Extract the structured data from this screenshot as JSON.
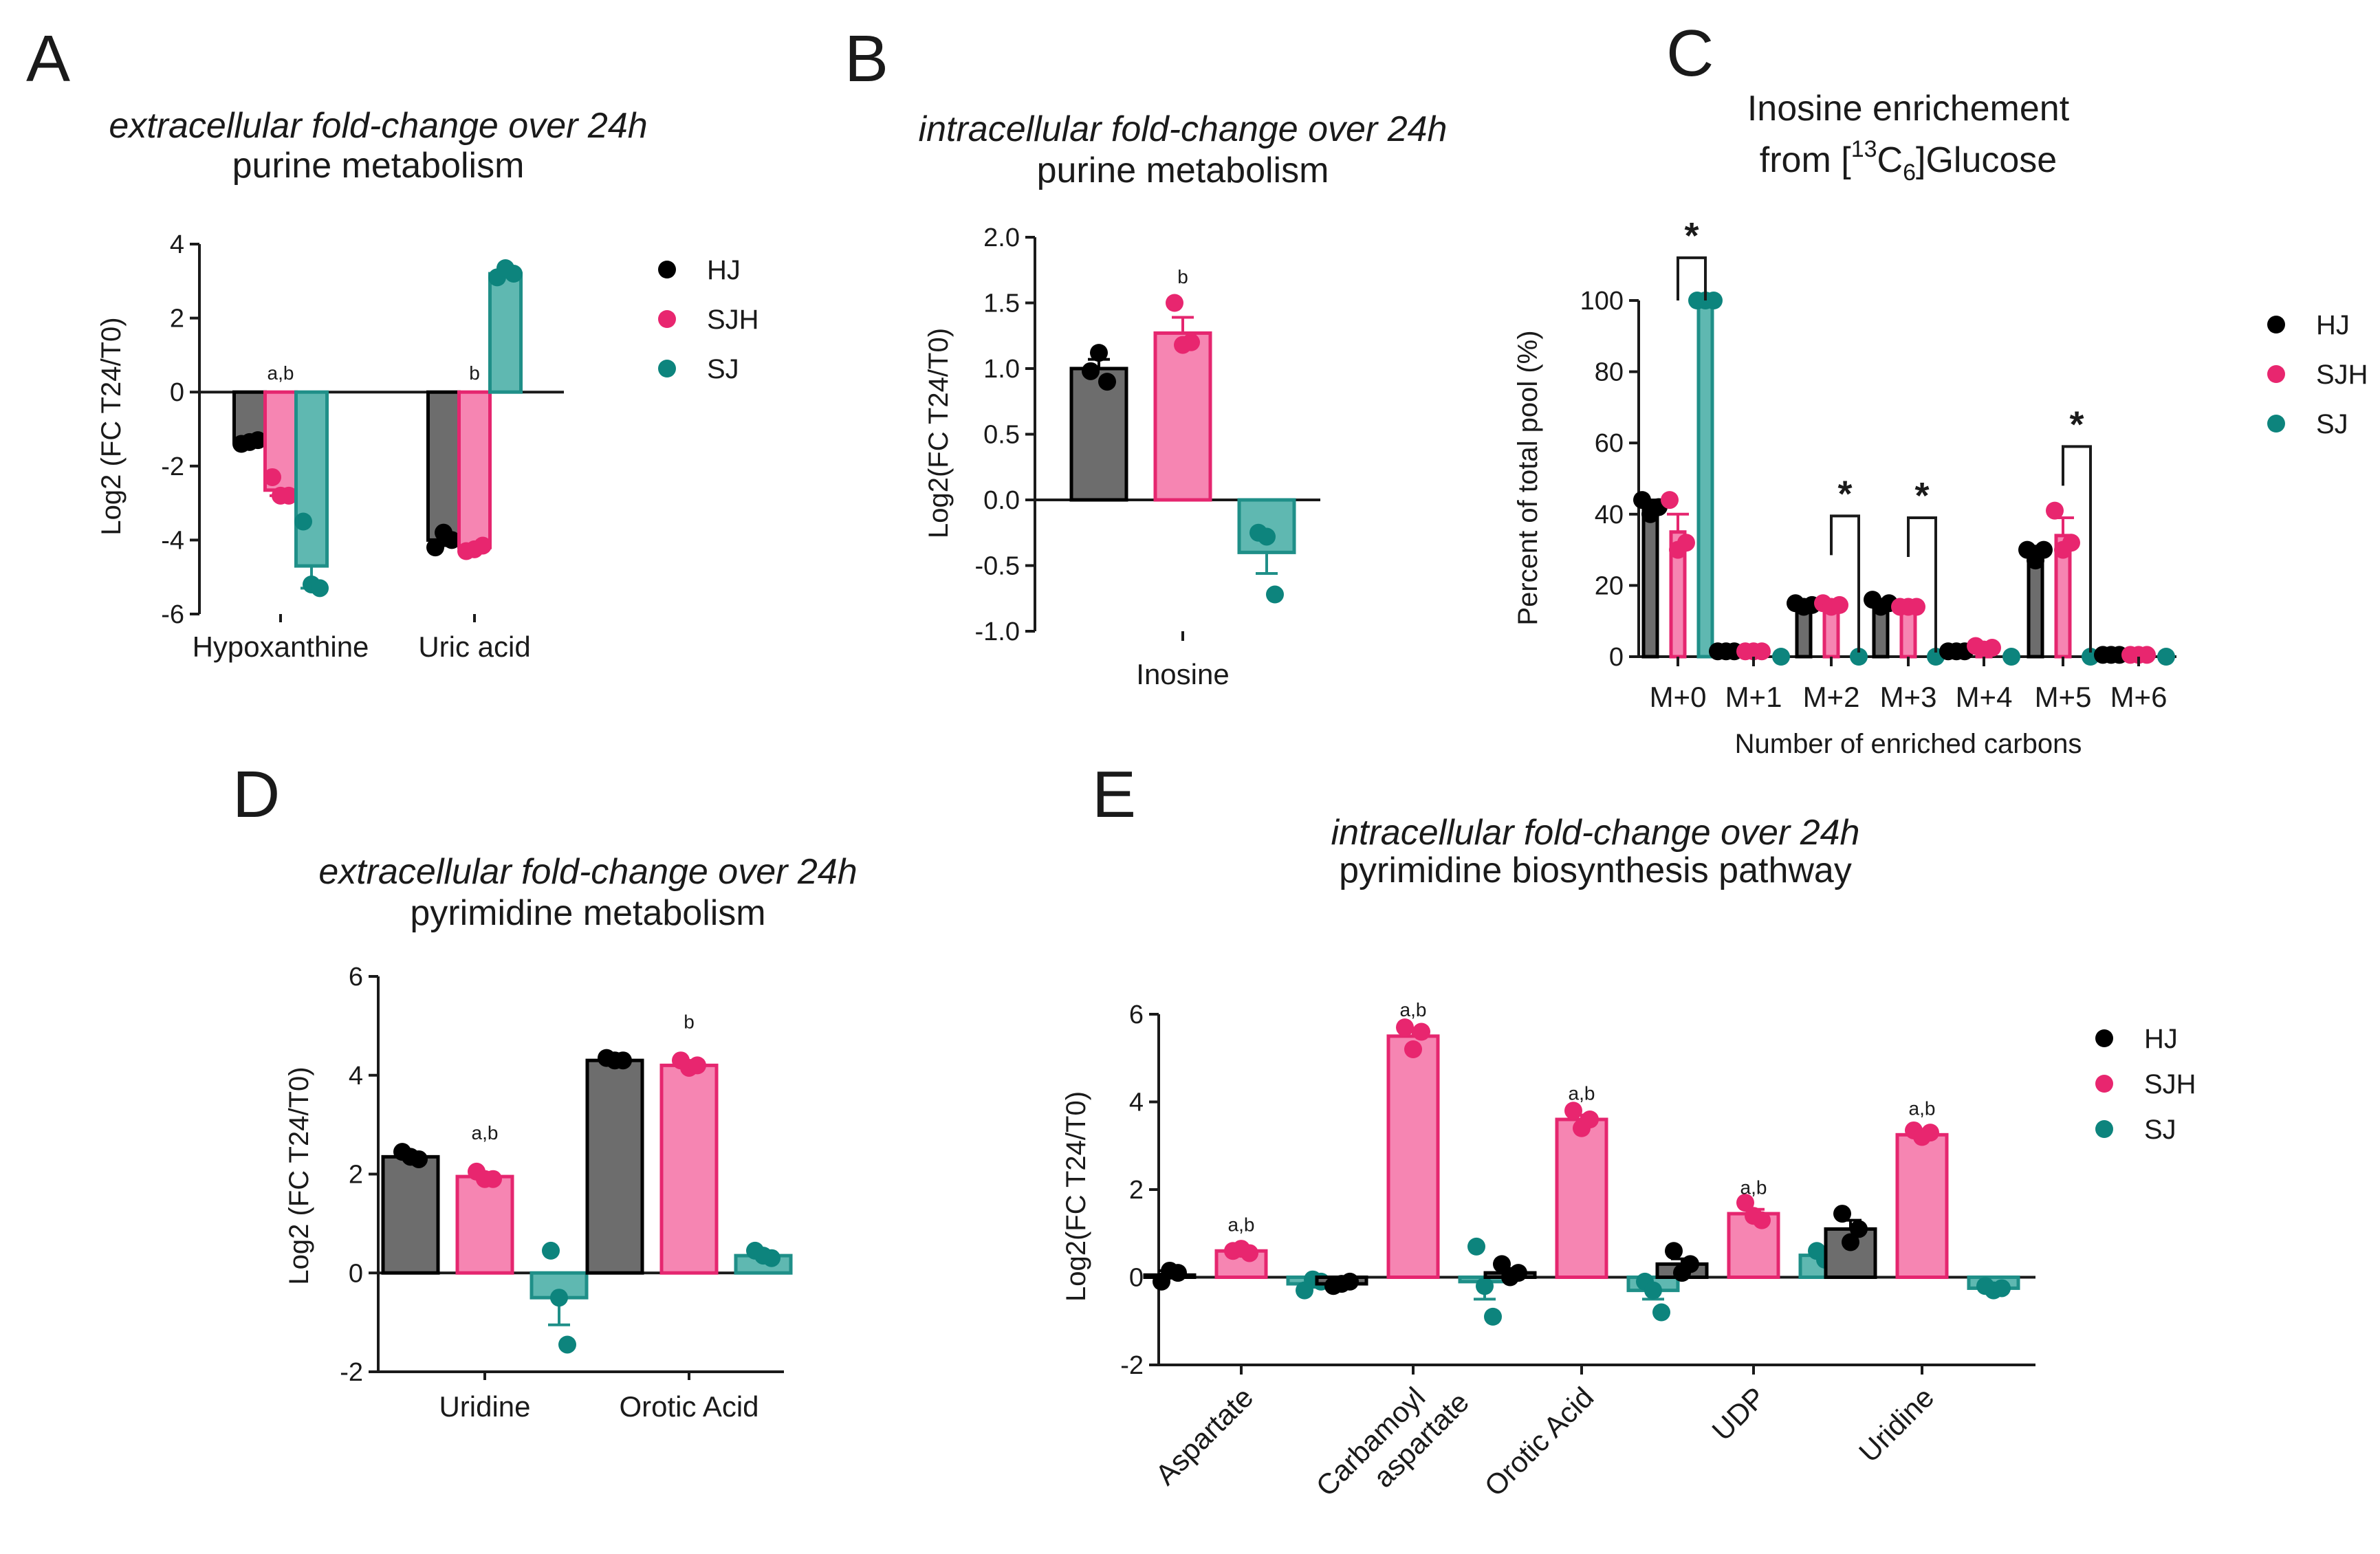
{
  "colors": {
    "HJ": {
      "fill": "#6d6d6d",
      "stroke": "#000000",
      "dot": "#000000"
    },
    "SJH": {
      "fill": "#f685b2",
      "stroke": "#e5266f",
      "dot": "#e8266f"
    },
    "SJ": {
      "fill": "#5fb8b1",
      "stroke": "#1f8f88",
      "dot": "#0d847d"
    }
  },
  "legend": [
    "HJ",
    "SJH",
    "SJ"
  ],
  "chart_data": [
    {
      "id": "A",
      "panel_label": "A",
      "type": "bar",
      "title_italic": "extracellular fold-change over 24h",
      "title": "purine metabolism",
      "ylabel": "Log2 (FC T24/T0)",
      "xlabel": "",
      "ylim": [
        -6,
        4
      ],
      "yticks": [
        "4",
        "2",
        "0",
        "-2",
        "-4",
        "-6"
      ],
      "categories": [
        "Hypoxanthine",
        "Uric acid"
      ],
      "series": [
        {
          "name": "HJ",
          "values": [
            -1.35,
            -4.0
          ],
          "err": [
            0.05,
            0.15
          ],
          "points": [
            [
              -1.4,
              -1.35,
              -1.3
            ],
            [
              -4.2,
              -3.8,
              -4.0
            ]
          ]
        },
        {
          "name": "SJH",
          "values": [
            -2.65,
            -4.2
          ],
          "err": [
            0.15,
            0.05
          ],
          "points": [
            [
              -2.3,
              -2.8,
              -2.8
            ],
            [
              -4.3,
              -4.25,
              -4.15
            ]
          ]
        },
        {
          "name": "SJ",
          "values": [
            -4.7,
            3.2
          ],
          "err": [
            0.6,
            0.08
          ],
          "points": [
            [
              -3.5,
              -5.2,
              -5.3
            ],
            [
              3.1,
              3.35,
              3.2
            ]
          ]
        }
      ],
      "annotations": [
        {
          "category": 0,
          "series": 1,
          "text": "a,b"
        },
        {
          "category": 1,
          "series": 1,
          "text": "b"
        }
      ]
    },
    {
      "id": "B",
      "panel_label": "B",
      "type": "bar",
      "title_italic": "intracellular fold-change over 24h",
      "title": "purine metabolism",
      "ylabel": "Log2(FC T24/T0)",
      "xlabel": "",
      "ylim": [
        -1.0,
        2.0
      ],
      "yticks": [
        "2.0",
        "1.5",
        "1.0",
        "0.5",
        "0.0",
        "-0.5",
        "-1.0"
      ],
      "categories": [
        "Inosine"
      ],
      "series": [
        {
          "name": "HJ",
          "values": [
            1.0
          ],
          "err": [
            0.07
          ],
          "points": [
            [
              0.98,
              1.12,
              0.9
            ]
          ]
        },
        {
          "name": "SJH",
          "values": [
            1.27
          ],
          "err": [
            0.12
          ],
          "points": [
            [
              1.5,
              1.18,
              1.2
            ]
          ]
        },
        {
          "name": "SJ",
          "values": [
            -0.4
          ],
          "err": [
            0.16
          ],
          "points": [
            [
              -0.25,
              -0.28,
              -0.72
            ]
          ]
        }
      ],
      "annotations": [
        {
          "category": 0,
          "series": 1,
          "text": "b"
        }
      ]
    },
    {
      "id": "C",
      "panel_label": "C",
      "type": "bar",
      "title": "Inosine enrichement",
      "title2_parts": [
        "from [",
        "13",
        "C",
        "6",
        "]Glucose"
      ],
      "ylabel": "Percent of total pool (%)",
      "xlabel": "Number of enriched carbons",
      "ylim": [
        0,
        100
      ],
      "yticks": [
        "100",
        "80",
        "60",
        "40",
        "20",
        "0"
      ],
      "categories": [
        "M+0",
        "M+1",
        "M+2",
        "M+3",
        "M+4",
        "M+5",
        "M+6"
      ],
      "series": [
        {
          "name": "HJ",
          "values": [
            42,
            1.5,
            14.5,
            15,
            1.5,
            29,
            0.5
          ],
          "err": [
            2,
            0.3,
            1,
            1,
            0.3,
            2,
            0.2
          ],
          "points": [
            [
              44,
              40,
              42
            ],
            [
              1.5,
              1.5,
              1.5
            ],
            [
              15,
              14,
              14.5
            ],
            [
              16,
              14,
              15
            ],
            [
              1.5,
              1.5,
              1.5
            ],
            [
              30,
              27,
              30
            ],
            [
              0.5,
              0.5,
              0.5
            ]
          ]
        },
        {
          "name": "SJH",
          "values": [
            35,
            1.5,
            14.5,
            14,
            2.5,
            34,
            0.5
          ],
          "err": [
            5,
            0.3,
            1,
            1,
            0.5,
            5,
            0.2
          ],
          "points": [
            [
              44,
              30,
              32
            ],
            [
              1.5,
              1.5,
              1.5
            ],
            [
              15,
              14,
              14.5
            ],
            [
              14,
              14,
              14
            ],
            [
              3,
              2,
              2.5
            ],
            [
              41,
              30,
              32
            ],
            [
              0.5,
              0.5,
              0.5
            ]
          ]
        },
        {
          "name": "SJ",
          "values": [
            100,
            0,
            0,
            0,
            0,
            0,
            0
          ],
          "err": [
            0,
            0,
            0,
            0,
            0,
            0,
            0
          ],
          "points": [
            [
              100,
              100,
              100
            ],
            [
              0
            ],
            [
              0
            ],
            [
              0
            ],
            [
              0
            ],
            [
              0
            ],
            [
              0
            ]
          ]
        }
      ],
      "significance": [
        {
          "category": 0,
          "text": "*"
        },
        {
          "category": 2,
          "text": "*"
        },
        {
          "category": 3,
          "text": "*"
        },
        {
          "category": 5,
          "text": "*"
        }
      ]
    },
    {
      "id": "D",
      "panel_label": "D",
      "type": "bar",
      "title_italic": "extracellular fold-change over 24h",
      "title": "pyrimidine metabolism",
      "ylabel": "Log2 (FC T24/T0)",
      "xlabel": "",
      "ylim": [
        -2,
        6
      ],
      "yticks": [
        "6",
        "4",
        "2",
        "0",
        "-2"
      ],
      "categories": [
        "Uridine",
        "Orotic Acid"
      ],
      "series": [
        {
          "name": "HJ",
          "values": [
            2.35,
            4.3
          ],
          "err": [
            0.05,
            0.03
          ],
          "points": [
            [
              2.45,
              2.35,
              2.3
            ],
            [
              4.35,
              4.3,
              4.3
            ]
          ]
        },
        {
          "name": "SJH",
          "values": [
            1.95,
            4.2
          ],
          "err": [
            0.08,
            0.05
          ],
          "points": [
            [
              2.05,
              1.9,
              1.9
            ],
            [
              4.3,
              4.15,
              4.2
            ]
          ]
        },
        {
          "name": "SJ",
          "values": [
            -0.5,
            0.35
          ],
          "err": [
            0.55,
            0.05
          ],
          "points": [
            [
              0.45,
              -0.5,
              -1.45
            ],
            [
              0.45,
              0.35,
              0.3
            ]
          ]
        }
      ],
      "annotations": [
        {
          "category": 0,
          "series": 1,
          "text": "a,b"
        },
        {
          "category": 1,
          "series": 1,
          "text": "b"
        }
      ]
    },
    {
      "id": "E",
      "panel_label": "E",
      "type": "bar",
      "title_italic": "intracellular fold-change over 24h",
      "title": "pyrimidine biosynthesis pathway",
      "ylabel": "Log2(FC T24/T0)",
      "xlabel": "",
      "ylim": [
        -2,
        6
      ],
      "yticks": [
        "6",
        "4",
        "2",
        "0",
        "-2"
      ],
      "categories": [
        "Aspartate",
        "Carbamoyl aspartate",
        "Orotic Acid",
        "UDP",
        "Uridine"
      ],
      "category_lines": [
        [
          "Aspartate"
        ],
        [
          "Carbamoyl",
          "aspartate"
        ],
        [
          "Orotic Acid"
        ],
        [
          "UDP"
        ],
        [
          "Uridine"
        ]
      ],
      "series": [
        {
          "name": "HJ",
          "values": [
            0.05,
            -0.15,
            0.1,
            0.3,
            1.1
          ],
          "err": [
            0.1,
            0.05,
            0.1,
            0.12,
            0.2
          ],
          "points": [
            [
              -0.1,
              0.15,
              0.1
            ],
            [
              -0.2,
              -0.15,
              -0.1
            ],
            [
              0.3,
              0.0,
              0.1
            ],
            [
              0.6,
              0.1,
              0.3
            ],
            [
              1.45,
              0.8,
              1.1
            ]
          ]
        },
        {
          "name": "SJH",
          "values": [
            0.6,
            5.5,
            3.6,
            1.45,
            3.25
          ],
          "err": [
            0.05,
            0.15,
            0.1,
            0.1,
            0.05
          ],
          "points": [
            [
              0.6,
              0.65,
              0.55
            ],
            [
              5.7,
              5.2,
              5.6
            ],
            [
              3.8,
              3.4,
              3.6
            ],
            [
              1.7,
              1.4,
              1.3
            ],
            [
              3.35,
              3.2,
              3.3
            ]
          ]
        },
        {
          "name": "SJ",
          "values": [
            -0.15,
            -0.1,
            -0.3,
            0.5,
            -0.25
          ],
          "err": [
            0.08,
            0.4,
            0.2,
            0.1,
            0.05
          ],
          "points": [
            [
              -0.3,
              -0.05,
              -0.1
            ],
            [
              0.7,
              -0.2,
              -0.9
            ],
            [
              -0.1,
              -0.3,
              -0.8
            ],
            [
              0.6,
              0.4,
              0.5
            ],
            [
              -0.2,
              -0.3,
              -0.25
            ]
          ]
        }
      ],
      "annotations": [
        {
          "category": 0,
          "series": 1,
          "text": "a,b"
        },
        {
          "category": 1,
          "series": 1,
          "text": "a,b"
        },
        {
          "category": 2,
          "series": 1,
          "text": "a,b"
        },
        {
          "category": 3,
          "series": 1,
          "text": "a,b"
        },
        {
          "category": 4,
          "series": 1,
          "text": "a,b"
        }
      ]
    }
  ]
}
